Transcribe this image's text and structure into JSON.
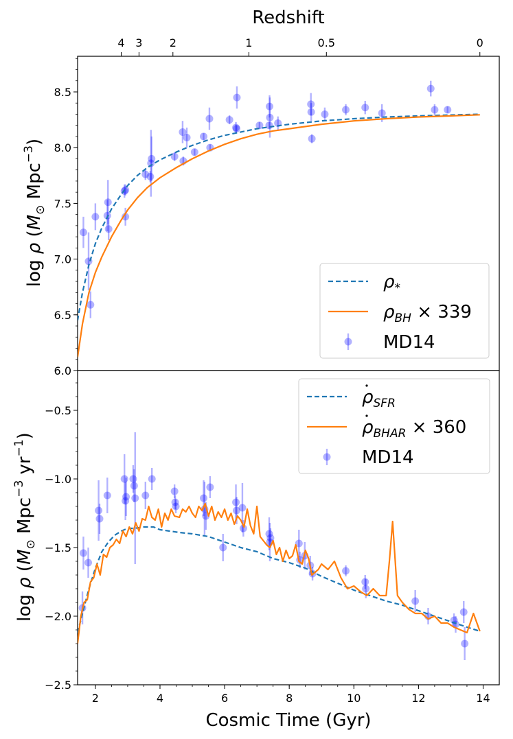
{
  "top_axis_label": "Redshift",
  "top_ticks": [
    {
      "label": "4",
      "t": 2.8
    },
    {
      "label": "3",
      "t": 3.35
    },
    {
      "label": "2",
      "t": 4.4
    },
    {
      "label": "1",
      "t": 6.75
    },
    {
      "label": "0.5",
      "t": 9.15
    },
    {
      "label": "0",
      "t": 13.9
    }
  ],
  "x_label": "Cosmic Time (Gyr)",
  "x_ticks": [
    2,
    4,
    6,
    8,
    10,
    12,
    14
  ],
  "x_range": [
    1.45,
    14.5
  ],
  "colors": {
    "dashed": "#1f77b4",
    "solid": "#ff7f0e",
    "points": "#0000ff"
  },
  "chart_data": [
    {
      "type": "line",
      "id": "upper",
      "ylabel_parts": {
        "pre": "log ",
        "rho": "ρ",
        "mid": " (",
        "M": "M",
        "sun": "⊙",
        "unit": " Mpc",
        "exp": "−3",
        "post": ")"
      },
      "ylim": [
        6.0,
        8.82
      ],
      "y_ticks": [
        "6.0",
        "6.5",
        "7.0",
        "7.5",
        "8.0",
        "8.5"
      ],
      "legend": {
        "placement": "lower-right",
        "entries": [
          {
            "kind": "dashed",
            "sym": "ρ",
            "sub": "*",
            "extra": ""
          },
          {
            "kind": "solid",
            "sym": "ρ",
            "sub": "BH",
            "extra": " × 339"
          },
          {
            "kind": "points",
            "sym": "MD14",
            "sub": "",
            "extra": ""
          }
        ]
      },
      "series": [
        {
          "kind": "dashed",
          "x": [
            1.45,
            1.6,
            1.8,
            2.0,
            2.2,
            2.5,
            2.8,
            3.0,
            3.3,
            3.6,
            4.0,
            4.5,
            5.0,
            5.5,
            6.0,
            6.5,
            7.0,
            7.5,
            8.0,
            9.0,
            10.0,
            11.0,
            12.0,
            13.0,
            13.9
          ],
          "y": [
            6.45,
            6.7,
            6.95,
            7.14,
            7.28,
            7.45,
            7.58,
            7.66,
            7.75,
            7.82,
            7.89,
            7.96,
            8.02,
            8.07,
            8.11,
            8.14,
            8.17,
            8.19,
            8.21,
            8.24,
            8.26,
            8.275,
            8.285,
            8.293,
            8.3
          ]
        },
        {
          "kind": "solid",
          "x": [
            1.45,
            1.6,
            1.8,
            2.0,
            2.2,
            2.5,
            2.8,
            3.0,
            3.3,
            3.6,
            4.0,
            4.5,
            5.0,
            5.5,
            6.0,
            6.5,
            7.0,
            7.5,
            8.0,
            9.0,
            10.0,
            11.0,
            12.0,
            13.0,
            13.9
          ],
          "y": [
            6.12,
            6.42,
            6.7,
            6.88,
            7.02,
            7.2,
            7.35,
            7.44,
            7.55,
            7.64,
            7.73,
            7.82,
            7.9,
            7.97,
            8.03,
            8.08,
            8.12,
            8.15,
            8.17,
            8.21,
            8.24,
            8.26,
            8.275,
            8.285,
            8.295
          ]
        }
      ],
      "points": [
        {
          "x": 1.63,
          "y": 7.24,
          "e": 0.14
        },
        {
          "x": 1.79,
          "y": 6.98,
          "e": 0.26
        },
        {
          "x": 1.85,
          "y": 6.59,
          "e": 0.12
        },
        {
          "x": 2.0,
          "y": 7.38,
          "e": 0.12
        },
        {
          "x": 2.37,
          "y": 7.39,
          "e": 0.14
        },
        {
          "x": 2.39,
          "y": 7.51,
          "e": 0.2
        },
        {
          "x": 2.41,
          "y": 7.27,
          "e": 0.1
        },
        {
          "x": 2.9,
          "y": 7.61,
          "e": 0.06
        },
        {
          "x": 2.93,
          "y": 7.62,
          "e": 0.05
        },
        {
          "x": 2.93,
          "y": 7.38,
          "e": 0.08
        },
        {
          "x": 3.55,
          "y": 7.76,
          "e": 0.05
        },
        {
          "x": 3.7,
          "y": 7.74,
          "e": 0.05
        },
        {
          "x": 3.72,
          "y": 7.86,
          "e": 0.3
        },
        {
          "x": 3.74,
          "y": 7.9,
          "e": 0.2
        },
        {
          "x": 4.45,
          "y": 7.92,
          "e": 0.04
        },
        {
          "x": 4.7,
          "y": 8.14,
          "e": 0.1
        },
        {
          "x": 4.72,
          "y": 7.88,
          "e": 0.04
        },
        {
          "x": 4.83,
          "y": 8.09,
          "e": 0.09
        },
        {
          "x": 5.07,
          "y": 7.96,
          "e": 0.03
        },
        {
          "x": 5.35,
          "y": 8.1,
          "e": 0.03
        },
        {
          "x": 5.53,
          "y": 8.26,
          "e": 0.1
        },
        {
          "x": 5.55,
          "y": 8.0,
          "e": 0.03
        },
        {
          "x": 6.15,
          "y": 8.25,
          "e": 0.04
        },
        {
          "x": 6.35,
          "y": 8.18,
          "e": 0.05
        },
        {
          "x": 6.37,
          "y": 8.17,
          "e": 0.03
        },
        {
          "x": 6.38,
          "y": 8.45,
          "e": 0.1
        },
        {
          "x": 7.08,
          "y": 8.2,
          "e": 0.03
        },
        {
          "x": 7.38,
          "y": 8.2,
          "e": 0.03
        },
        {
          "x": 7.39,
          "y": 8.37,
          "e": 0.1
        },
        {
          "x": 7.4,
          "y": 8.27,
          "e": 0.18
        },
        {
          "x": 7.65,
          "y": 8.22,
          "e": 0.06
        },
        {
          "x": 8.67,
          "y": 8.39,
          "e": 0.1
        },
        {
          "x": 8.68,
          "y": 8.32,
          "e": 0.08
        },
        {
          "x": 8.7,
          "y": 8.08,
          "e": 0.04
        },
        {
          "x": 9.1,
          "y": 8.3,
          "e": 0.06
        },
        {
          "x": 9.75,
          "y": 8.34,
          "e": 0.05
        },
        {
          "x": 10.35,
          "y": 8.36,
          "e": 0.06
        },
        {
          "x": 10.87,
          "y": 8.31,
          "e": 0.08
        },
        {
          "x": 12.38,
          "y": 8.53,
          "e": 0.07
        },
        {
          "x": 12.5,
          "y": 8.34,
          "e": 0.05
        },
        {
          "x": 12.9,
          "y": 8.34,
          "e": 0.03
        }
      ]
    },
    {
      "type": "line",
      "id": "lower",
      "ylabel_parts": {
        "pre": "log ",
        "rho": "ρ",
        "mid": " (",
        "M": "M",
        "sun": "⊙",
        "unit": " Mpc",
        "exp1": "−3",
        "yr": " yr",
        "exp2": "−1",
        "post": ")"
      },
      "ylim": [
        -2.5,
        -0.21
      ],
      "y_ticks": [
        "−2.5",
        "−2.0",
        "−1.5",
        "−1.0",
        "−0.5"
      ],
      "y_tick_values": [
        -2.5,
        -2.0,
        -1.5,
        -1.0,
        -0.5
      ],
      "legend": {
        "placement": "top-right",
        "entries": [
          {
            "kind": "dashed",
            "sym": "ρ",
            "sub": "SFR",
            "extra": ""
          },
          {
            "kind": "solid",
            "sym": "ρ",
            "sub": "BHAR",
            "extra": " × 360"
          },
          {
            "kind": "points",
            "sym": "MD14",
            "sub": "",
            "extra": ""
          }
        ]
      },
      "series": [
        {
          "kind": "dashed",
          "x": [
            1.45,
            1.6,
            1.8,
            2.0,
            2.2,
            2.4,
            2.6,
            2.8,
            3.0,
            3.2,
            3.5,
            3.8,
            4.0,
            4.3,
            4.6,
            5.0,
            5.5,
            6.0,
            6.5,
            7.0,
            7.5,
            8.0,
            8.5,
            9.0,
            9.5,
            10.0,
            10.5,
            11.0,
            11.5,
            12.0,
            12.5,
            13.0,
            13.5,
            13.9
          ],
          "y": [
            -2.12,
            -1.98,
            -1.8,
            -1.65,
            -1.53,
            -1.46,
            -1.41,
            -1.38,
            -1.36,
            -1.36,
            -1.35,
            -1.35,
            -1.37,
            -1.38,
            -1.39,
            -1.4,
            -1.42,
            -1.46,
            -1.5,
            -1.53,
            -1.58,
            -1.61,
            -1.65,
            -1.71,
            -1.76,
            -1.81,
            -1.85,
            -1.89,
            -1.92,
            -1.96,
            -2.0,
            -2.04,
            -2.08,
            -2.11
          ]
        },
        {
          "kind": "solid",
          "x": [
            1.45,
            1.55,
            1.65,
            1.75,
            1.85,
            1.95,
            2.05,
            2.15,
            2.25,
            2.35,
            2.45,
            2.55,
            2.65,
            2.75,
            2.85,
            2.95,
            3.05,
            3.15,
            3.25,
            3.35,
            3.45,
            3.55,
            3.65,
            3.75,
            3.85,
            3.95,
            4.05,
            4.15,
            4.25,
            4.35,
            4.45,
            4.6,
            4.7,
            4.8,
            4.9,
            5.0,
            5.1,
            5.2,
            5.3,
            5.4,
            5.5,
            5.6,
            5.7,
            5.8,
            5.9,
            6.0,
            6.1,
            6.2,
            6.3,
            6.4,
            6.5,
            6.6,
            6.7,
            6.8,
            6.9,
            7.0,
            7.1,
            7.2,
            7.3,
            7.4,
            7.5,
            7.6,
            7.7,
            7.8,
            7.9,
            8.0,
            8.1,
            8.2,
            8.3,
            8.4,
            8.5,
            8.6,
            8.7,
            8.8,
            8.9,
            9.0,
            9.2,
            9.4,
            9.6,
            9.8,
            10.0,
            10.2,
            10.4,
            10.6,
            10.8,
            11.0,
            11.1,
            11.2,
            11.35,
            11.5,
            11.7,
            11.9,
            12.1,
            12.3,
            12.5,
            12.7,
            12.9,
            13.1,
            13.3,
            13.5,
            13.7,
            13.9
          ],
          "y": [
            -2.2,
            -2.0,
            -1.9,
            -1.88,
            -1.75,
            -1.72,
            -1.62,
            -1.7,
            -1.55,
            -1.57,
            -1.5,
            -1.48,
            -1.44,
            -1.47,
            -1.38,
            -1.42,
            -1.35,
            -1.4,
            -1.32,
            -1.38,
            -1.29,
            -1.3,
            -1.2,
            -1.28,
            -1.3,
            -1.22,
            -1.35,
            -1.25,
            -1.3,
            -1.22,
            -1.27,
            -1.28,
            -1.22,
            -1.24,
            -1.2,
            -1.25,
            -1.28,
            -1.2,
            -1.23,
            -1.18,
            -1.27,
            -1.2,
            -1.3,
            -1.24,
            -1.28,
            -1.22,
            -1.3,
            -1.25,
            -1.33,
            -1.27,
            -1.3,
            -1.35,
            -1.22,
            -1.34,
            -1.4,
            -1.2,
            -1.42,
            -1.45,
            -1.48,
            -1.5,
            -1.45,
            -1.55,
            -1.5,
            -1.6,
            -1.52,
            -1.58,
            -1.56,
            -1.48,
            -1.6,
            -1.62,
            -1.52,
            -1.58,
            -1.7,
            -1.68,
            -1.66,
            -1.62,
            -1.66,
            -1.6,
            -1.72,
            -1.8,
            -1.78,
            -1.82,
            -1.85,
            -1.8,
            -1.85,
            -1.85,
            -1.6,
            -1.31,
            -1.85,
            -1.9,
            -1.95,
            -1.98,
            -1.98,
            -2.02,
            -2.0,
            -2.05,
            -2.05,
            -2.08,
            -2.1,
            -2.12,
            -1.98,
            -2.11
          ]
        }
      ],
      "points": [
        {
          "x": 1.6,
          "y": -1.94,
          "e": 0.12
        },
        {
          "x": 1.63,
          "y": -1.54,
          "e": 0.12
        },
        {
          "x": 1.78,
          "y": -1.61,
          "e": 0.11
        },
        {
          "x": 2.1,
          "y": -1.23,
          "e": 0.22
        },
        {
          "x": 2.13,
          "y": -1.29,
          "e": 0.11
        },
        {
          "x": 2.37,
          "y": -1.12,
          "e": 0.13
        },
        {
          "x": 2.9,
          "y": -1.0,
          "e": 0.18
        },
        {
          "x": 2.93,
          "y": -1.16,
          "e": 0.14
        },
        {
          "x": 2.95,
          "y": -1.13,
          "e": 0.14
        },
        {
          "x": 3.17,
          "y": -1.0,
          "e": 0.1
        },
        {
          "x": 3.2,
          "y": -1.05,
          "e": 0.12
        },
        {
          "x": 3.23,
          "y": -1.14,
          "e": 0.48
        },
        {
          "x": 3.55,
          "y": -1.12,
          "e": 0.1
        },
        {
          "x": 3.75,
          "y": -1.0,
          "e": 0.08
        },
        {
          "x": 4.45,
          "y": -1.09,
          "e": 0.05
        },
        {
          "x": 4.47,
          "y": -1.17,
          "e": 0.05
        },
        {
          "x": 4.49,
          "y": -1.2,
          "e": 0.05
        },
        {
          "x": 5.35,
          "y": -1.14,
          "e": 0.13
        },
        {
          "x": 5.38,
          "y": -1.22,
          "e": 0.2
        },
        {
          "x": 5.42,
          "y": -1.27,
          "e": 0.1
        },
        {
          "x": 5.55,
          "y": -1.06,
          "e": 0.08
        },
        {
          "x": 5.95,
          "y": -1.5,
          "e": 0.1
        },
        {
          "x": 6.35,
          "y": -1.17,
          "e": 0.13
        },
        {
          "x": 6.37,
          "y": -1.23,
          "e": 0.1
        },
        {
          "x": 6.55,
          "y": -1.21,
          "e": 0.18
        },
        {
          "x": 6.58,
          "y": -1.36,
          "e": 0.06
        },
        {
          "x": 7.38,
          "y": -1.4,
          "e": 0.12
        },
        {
          "x": 7.4,
          "y": -1.46,
          "e": 0.14
        },
        {
          "x": 7.42,
          "y": -1.43,
          "e": 0.07
        },
        {
          "x": 8.3,
          "y": -1.47,
          "e": 0.1
        },
        {
          "x": 8.33,
          "y": -1.59,
          "e": 0.06
        },
        {
          "x": 8.48,
          "y": -1.56,
          "e": 0.1
        },
        {
          "x": 8.65,
          "y": -1.63,
          "e": 0.07
        },
        {
          "x": 8.72,
          "y": -1.69,
          "e": 0.05
        },
        {
          "x": 9.75,
          "y": -1.67,
          "e": 0.04
        },
        {
          "x": 10.35,
          "y": -1.75,
          "e": 0.05
        },
        {
          "x": 10.37,
          "y": -1.8,
          "e": 0.07
        },
        {
          "x": 11.9,
          "y": -1.89,
          "e": 0.08
        },
        {
          "x": 12.3,
          "y": -2.0,
          "e": 0.06
        },
        {
          "x": 13.1,
          "y": -2.03,
          "e": 0.05
        },
        {
          "x": 13.15,
          "y": -2.06,
          "e": 0.06
        },
        {
          "x": 13.4,
          "y": -1.97,
          "e": 0.08
        },
        {
          "x": 13.43,
          "y": -2.2,
          "e": 0.12
        }
      ]
    }
  ]
}
